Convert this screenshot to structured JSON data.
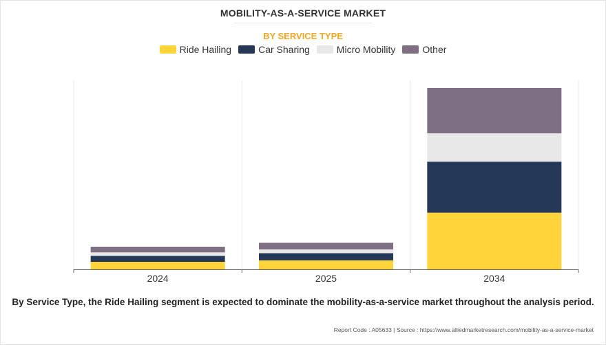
{
  "chart_data": {
    "type": "bar",
    "stacked": true,
    "title": "MOBILITY-AS-A-SERVICE MARKET",
    "subtitle": "BY SERVICE TYPE",
    "categories": [
      "2024",
      "2025",
      "2034"
    ],
    "series": [
      {
        "name": "Ride Hailing",
        "color": "#FFD43B",
        "values": [
          4.0,
          4.8,
          30.0
        ]
      },
      {
        "name": "Car Sharing",
        "color": "#253858",
        "values": [
          3.2,
          3.8,
          27.0
        ]
      },
      {
        "name": "Micro Mobility",
        "color": "#E8E8E8",
        "values": [
          1.8,
          2.0,
          15.0
        ]
      },
      {
        "name": "Other",
        "color": "#7F6F84",
        "values": [
          3.0,
          3.5,
          24.0
        ]
      }
    ],
    "ylim": [
      0,
      100
    ],
    "xlabel": "",
    "ylabel": "",
    "legend": "top-center",
    "grid": "vertical-separators"
  },
  "colors": {
    "subtitle": "#F5A623"
  },
  "caption": "By Service Type, the Ride Hailing segment is expected to dominate the mobility-as-a-service market throughout the analysis period.",
  "source": "Report Code : A05633  |  Source : https://www.alliedmarketresearch.com/mobility-as-a-service-market"
}
